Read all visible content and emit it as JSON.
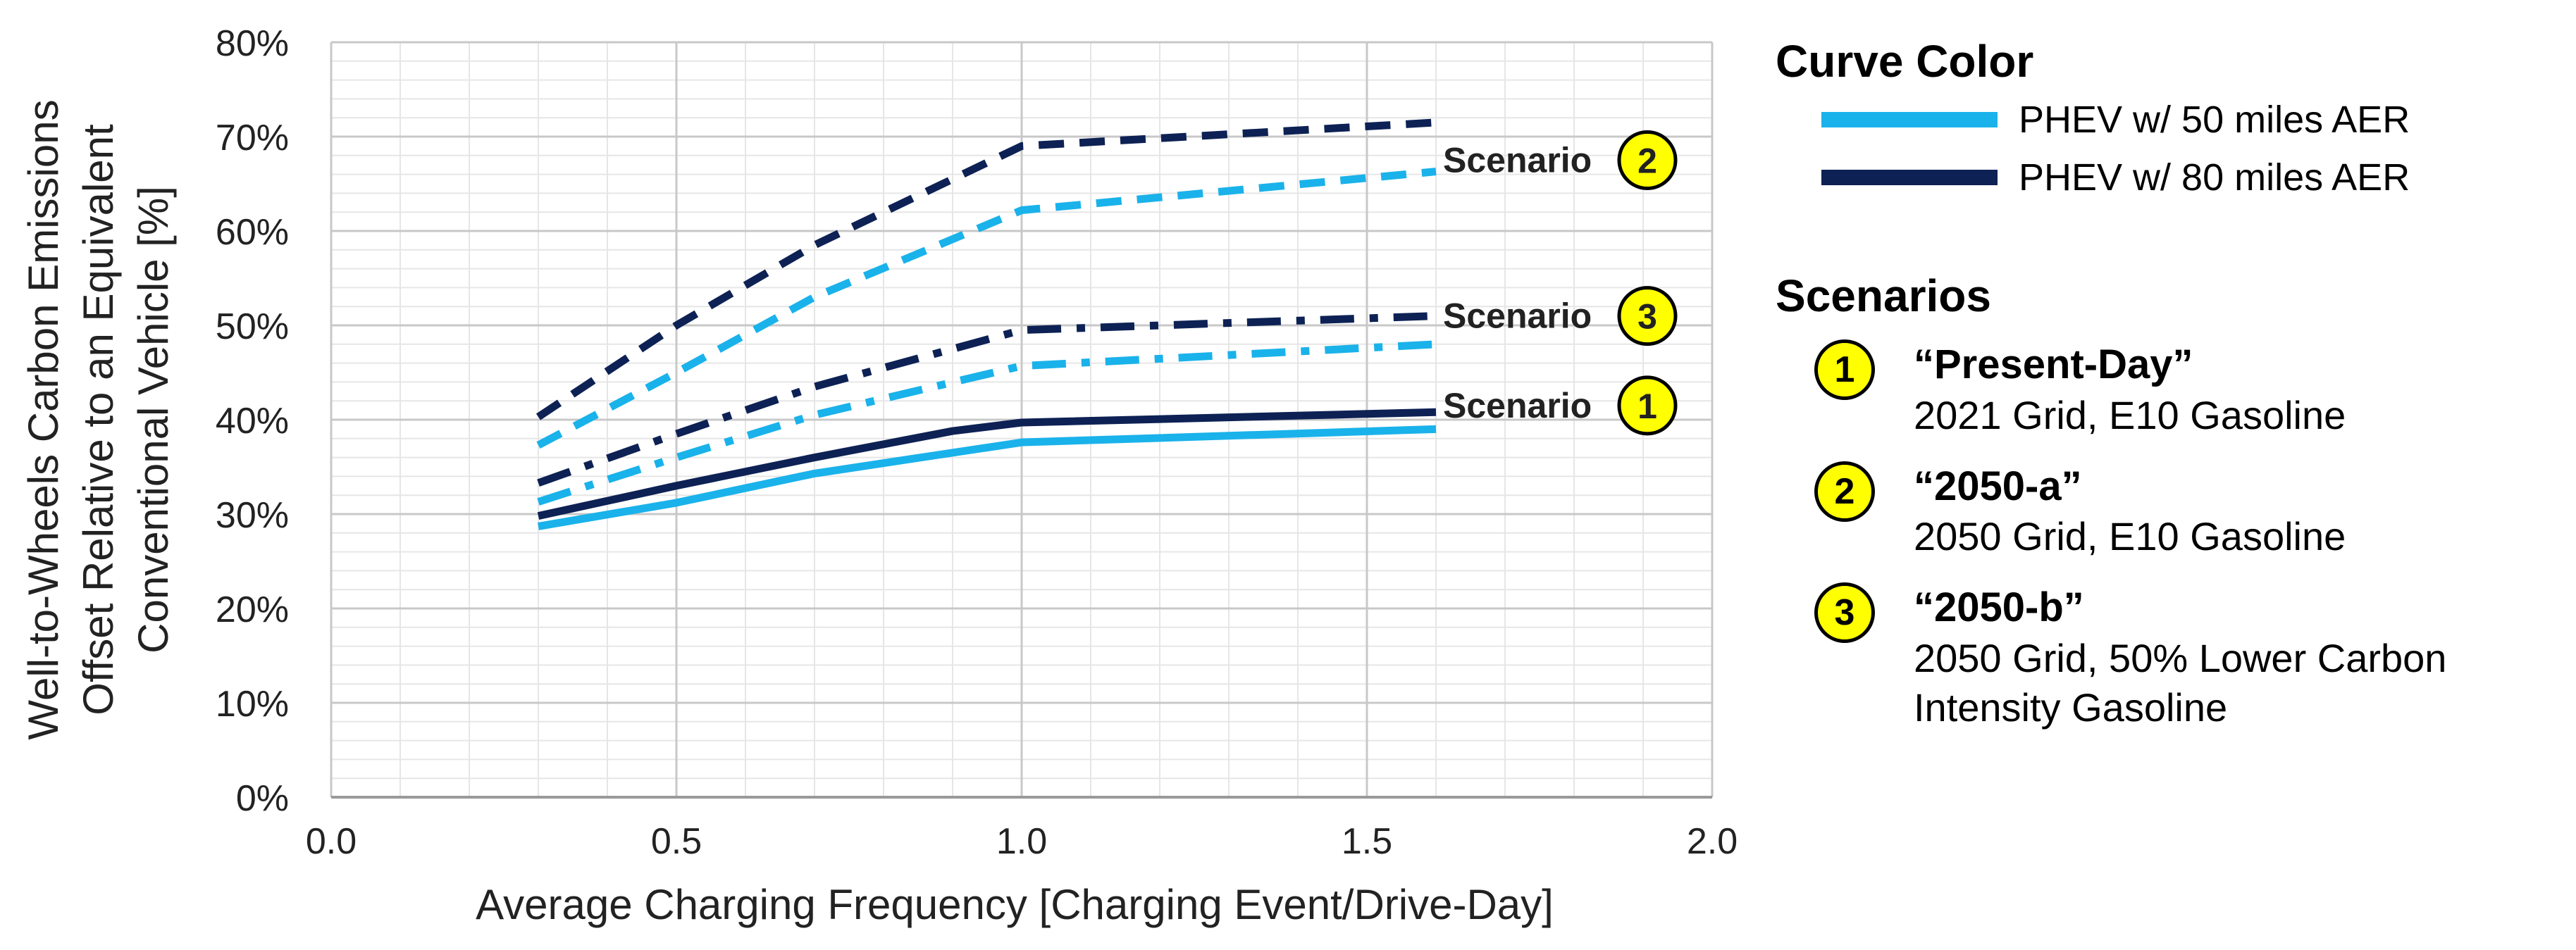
{
  "chart_data": {
    "type": "line",
    "xlabel": "Average Charging Frequency [Charging Event/Drive-Day]",
    "ylabel_lines": [
      "Well-to-Wheels Carbon Emissions",
      "Offset Relative to an Equivalent",
      "Conventional Vehicle  [%]"
    ],
    "xlim": [
      0,
      2
    ],
    "ylim": [
      0,
      80
    ],
    "xticks": [
      "0.0",
      "0.5",
      "1.0",
      "1.5",
      "2.0"
    ],
    "yticks": [
      "0%",
      "10%",
      "20%",
      "30%",
      "40%",
      "50%",
      "60%",
      "70%",
      "80%"
    ],
    "grid": true,
    "series": [
      {
        "scenario": 2,
        "vehicle": "PHEV w/ 80 miles AER",
        "color": "#0d2154",
        "style": "dashed",
        "x": [
          0.3,
          0.5,
          0.7,
          1.0,
          1.6
        ],
        "y": [
          40.3,
          50.0,
          58.5,
          69.0,
          71.5
        ]
      },
      {
        "scenario": 2,
        "vehicle": "PHEV w/ 50 miles AER",
        "color": "#1ab2ea",
        "style": "dashed",
        "x": [
          0.3,
          0.5,
          0.7,
          1.0,
          1.6
        ],
        "y": [
          37.3,
          45.0,
          53.0,
          62.2,
          66.3
        ]
      },
      {
        "scenario": 3,
        "vehicle": "PHEV w/ 80 miles AER",
        "color": "#0d2154",
        "style": "dashdot",
        "x": [
          0.3,
          0.5,
          0.7,
          1.0,
          1.6
        ],
        "y": [
          33.3,
          38.5,
          43.5,
          49.5,
          51.0
        ]
      },
      {
        "scenario": 3,
        "vehicle": "PHEV w/ 50 miles AER",
        "color": "#1ab2ea",
        "style": "dashdot",
        "x": [
          0.3,
          0.5,
          0.7,
          1.0,
          1.6
        ],
        "y": [
          31.3,
          36.0,
          40.5,
          45.7,
          48.0
        ]
      },
      {
        "scenario": 1,
        "vehicle": "PHEV w/ 80 miles AER",
        "color": "#0d2154",
        "style": "solid",
        "x": [
          0.3,
          0.5,
          0.7,
          0.9,
          1.0,
          1.6
        ],
        "y": [
          29.8,
          33.0,
          36.0,
          38.8,
          39.7,
          40.8
        ]
      },
      {
        "scenario": 1,
        "vehicle": "PHEV w/ 50 miles AER",
        "color": "#1ab2ea",
        "style": "solid",
        "x": [
          0.3,
          0.5,
          0.7,
          1.0,
          1.6
        ],
        "y": [
          28.7,
          31.2,
          34.3,
          37.6,
          39.0
        ]
      }
    ],
    "annotations": [
      {
        "text": "Scenario",
        "number": "2",
        "x": 1.6,
        "y": 67.5
      },
      {
        "text": "Scenario",
        "number": "3",
        "x": 1.6,
        "y": 51.0
      },
      {
        "text": "Scenario",
        "number": "1",
        "x": 1.6,
        "y": 41.5
      }
    ]
  },
  "legend": {
    "curve_color_title": "Curve Color",
    "curve_items": [
      {
        "label": "PHEV w/ 50 miles AER",
        "color": "#1ab2ea"
      },
      {
        "label": "PHEV w/ 80 miles AER",
        "color": "#0d2154"
      }
    ],
    "scenarios_title": "Scenarios",
    "scenario_items": [
      {
        "number": "1",
        "title": "“Present-Day”",
        "desc_lines": [
          "2021 Grid, E10 Gasoline"
        ]
      },
      {
        "number": "2",
        "title": "“2050-a”",
        "desc_lines": [
          "2050 Grid, E10 Gasoline"
        ]
      },
      {
        "number": "3",
        "title": "“2050-b”",
        "desc_lines": [
          "2050 Grid, 50% Lower Carbon",
          "Intensity Gasoline"
        ]
      }
    ]
  }
}
